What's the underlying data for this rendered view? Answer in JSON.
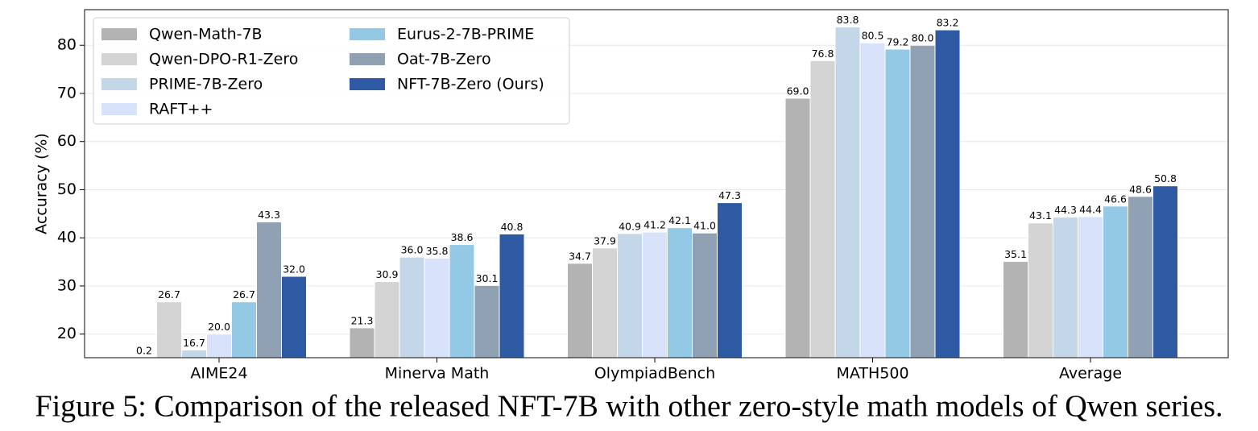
{
  "chart_data": {
    "type": "bar",
    "ylabel": "Accuracy (%)",
    "caption": "Figure 5: Comparison of the released NFT-7B with other zero-style math models of Qwen series.",
    "categories": [
      "AIME24",
      "Minerva Math",
      "OlympiadBench",
      "MATH500",
      "Average"
    ],
    "series": [
      {
        "name": "Qwen-Math-7B",
        "color": "#b3b3b3",
        "values": [
          0.2,
          21.3,
          34.7,
          69.0,
          35.1
        ],
        "value_labels": [
          "0.2",
          "21.3",
          "34.7",
          "69.0",
          "35.1"
        ]
      },
      {
        "name": "Qwen-DPO-R1-Zero",
        "color": "#d4d4d4",
        "values": [
          26.7,
          30.9,
          37.9,
          76.8,
          43.1
        ],
        "value_labels": [
          "26.7",
          "30.9",
          "37.9",
          "76.8",
          "43.1"
        ]
      },
      {
        "name": "PRIME-7B-Zero",
        "color": "#c4d7e8",
        "values": [
          16.7,
          36.0,
          40.9,
          83.8,
          44.3
        ],
        "value_labels": [
          "16.7",
          "36.0",
          "40.9",
          "83.8",
          "44.3"
        ]
      },
      {
        "name": "RAFT++",
        "color": "#d9e2fb",
        "values": [
          20.0,
          35.8,
          41.2,
          80.5,
          44.4
        ],
        "value_labels": [
          "20.0",
          "35.8",
          "41.2",
          "80.5",
          "44.4"
        ]
      },
      {
        "name": "Eurus-2-7B-PRIME",
        "color": "#94c9e6",
        "values": [
          26.7,
          38.6,
          42.1,
          79.2,
          46.6
        ],
        "value_labels": [
          "26.7",
          "38.6",
          "42.1",
          "79.2",
          "46.6"
        ]
      },
      {
        "name": "Oat-7B-Zero",
        "color": "#8fa1b3",
        "values": [
          43.3,
          30.1,
          41.0,
          80.0,
          48.6
        ],
        "value_labels": [
          "43.3",
          "30.1",
          "41.0",
          "80.0",
          "48.6"
        ]
      },
      {
        "name": "NFT-7B-Zero (Ours)",
        "color": "#2e5aa4",
        "values": [
          32.0,
          40.8,
          47.3,
          83.2,
          50.8
        ],
        "value_labels": [
          "32.0",
          "40.8",
          "47.3",
          "83.2",
          "50.8"
        ]
      }
    ],
    "ylim": [
      15.1,
      87.4
    ],
    "yticks": [
      20,
      30,
      40,
      50,
      60,
      70,
      80
    ],
    "grid": true,
    "legend": "upper left"
  }
}
